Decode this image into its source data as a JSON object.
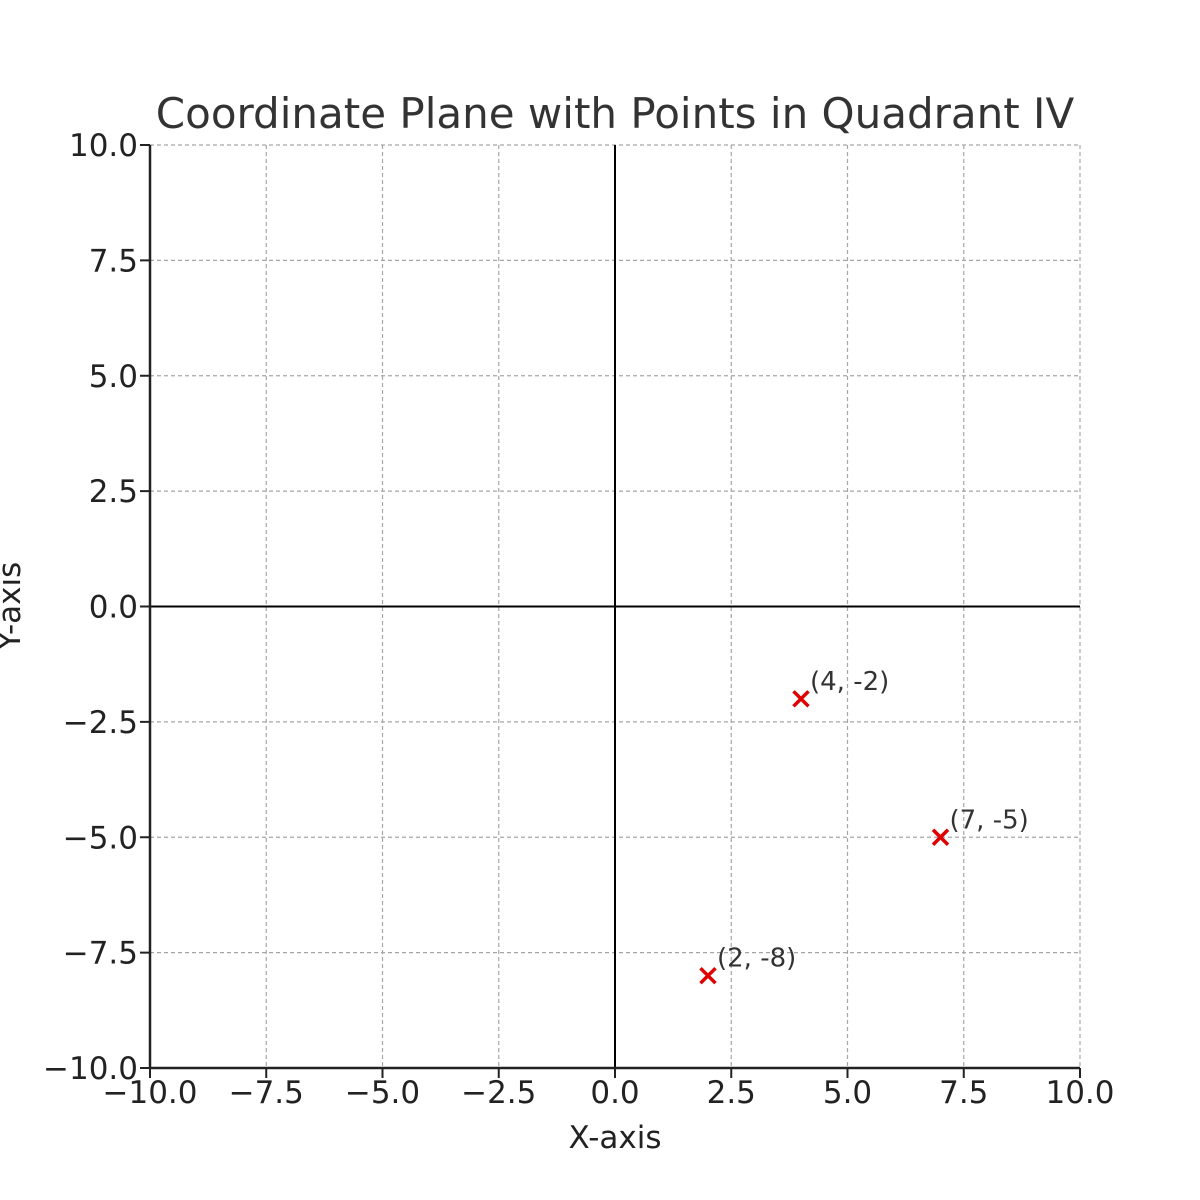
{
  "chart_data": {
    "type": "scatter",
    "title": "Coordinate Plane with Points in Quadrant IV",
    "xlabel": "X-axis",
    "ylabel": "Y-axis",
    "xlim": [
      -10,
      10
    ],
    "ylim": [
      -10,
      10
    ],
    "xticks": [
      -10,
      -7.5,
      -5,
      -2.5,
      0,
      2.5,
      5,
      7.5,
      10
    ],
    "yticks": [
      -10,
      -7.5,
      -5,
      -2.5,
      0,
      2.5,
      5,
      7.5,
      10
    ],
    "xtick_labels": [
      "−10.0",
      "−7.5",
      "−5.0",
      "−2.5",
      "0.0",
      "2.5",
      "5.0",
      "7.5",
      "10.0"
    ],
    "ytick_labels": [
      "−10.0",
      "−7.5",
      "−5.0",
      "−2.5",
      "0.0",
      "2.5",
      "5.0",
      "7.5",
      "10.0"
    ],
    "grid": true,
    "grid_style": "dashed",
    "origin_axes": true,
    "series": [
      {
        "marker": "x",
        "color": "#e00000",
        "points": [
          {
            "x": 4,
            "y": -2,
            "label": "(4, -2)"
          },
          {
            "x": 7,
            "y": -5,
            "label": "(7, -5)"
          },
          {
            "x": 2,
            "y": -8,
            "label": "(2, -8)"
          }
        ]
      }
    ]
  }
}
